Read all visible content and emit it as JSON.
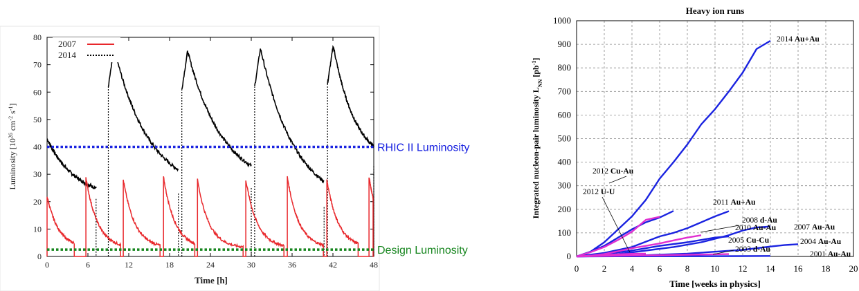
{
  "chart_data": [
    {
      "type": "line",
      "xlabel": "Time [h]",
      "ylabel": "Luminosity [10",
      "ylabel_exp": "26",
      "ylabel_unit": "cm",
      "ylabel_unit_exp1": "-2",
      "ylabel_unit_mid": "s",
      "ylabel_unit_exp2": "-1",
      "ylabel_close": "]",
      "xlim": [
        0,
        48
      ],
      "ylim": [
        0,
        80
      ],
      "xticks": [
        0,
        6,
        12,
        18,
        24,
        30,
        36,
        42,
        48
      ],
      "yticks": [
        0,
        10,
        20,
        30,
        40,
        50,
        60,
        70,
        80
      ],
      "legend": [
        "2007",
        "2014"
      ],
      "legend_position": "top-left",
      "series": [
        {
          "name": "2007",
          "color": "#e8272b",
          "fills": [
            {
              "start": 0.0,
              "end": 4.0,
              "peak": 22
            },
            {
              "start": 5.7,
              "end": 10.8,
              "peak": 29
            },
            {
              "start": 11.2,
              "end": 16.6,
              "peak": 28
            },
            {
              "start": 17.1,
              "end": 21.7,
              "peak": 29
            },
            {
              "start": 22.1,
              "end": 28.8,
              "peak": 28
            },
            {
              "start": 29.2,
              "end": 34.8,
              "peak": 28
            },
            {
              "start": 35.3,
              "end": 40.6,
              "peak": 29
            },
            {
              "start": 41.1,
              "end": 45.7,
              "peak": 28
            },
            {
              "start": 47.3,
              "end": 47.9,
              "peak": 29
            }
          ]
        },
        {
          "name": "2014",
          "color": "#000000",
          "fills": [
            {
              "start": 0.0,
              "end": 7.2,
              "peak": 43,
              "trough": 21
            },
            {
              "start": 9.0,
              "end": 19.3,
              "peak": 76,
              "trough": 23
            },
            {
              "start": 19.8,
              "end": 30.0,
              "peak": 75,
              "trough": 25
            },
            {
              "start": 30.5,
              "end": 40.7,
              "peak": 76,
              "trough": 18
            },
            {
              "start": 41.2,
              "end": 48.0,
              "peak": 77,
              "trough": 33
            }
          ]
        }
      ],
      "reference_lines": [
        {
          "label": "RHIC II Luminosity",
          "value": 40,
          "color": "#1a23e0"
        },
        {
          "label": "Design Luminosity",
          "value": 2.5,
          "color": "#17861f"
        }
      ]
    },
    {
      "type": "line",
      "title": "Heavy ion runs",
      "xlabel": "Time [weeks in physics]",
      "ylabel": "Integrated nucleon-pair luminosity L",
      "ylabel_sub": "NN",
      "ylabel_unit": " [pb",
      "ylabel_unit_exp": "-1",
      "ylabel_close": "]",
      "xlim": [
        0,
        20
      ],
      "ylim": [
        0,
        1000
      ],
      "xticks": [
        0,
        2,
        4,
        6,
        8,
        10,
        12,
        14,
        16,
        18,
        20
      ],
      "yticks": [
        0,
        100,
        200,
        300,
        400,
        500,
        600,
        700,
        800,
        900,
        1000
      ],
      "grid": true,
      "series": [
        {
          "year": "2014",
          "species": "Au+Au",
          "color": "#1a23e0",
          "points": [
            [
              0,
              0
            ],
            [
              1,
              20
            ],
            [
              2,
              60
            ],
            [
              3,
              115
            ],
            [
              4,
              170
            ],
            [
              5,
              240
            ],
            [
              6,
              330
            ],
            [
              7,
              400
            ],
            [
              8,
              475
            ],
            [
              9,
              560
            ],
            [
              10,
              625
            ],
            [
              11,
              700
            ],
            [
              12,
              780
            ],
            [
              13,
              880
            ],
            [
              14,
              915
            ]
          ]
        },
        {
          "year": "2011",
          "species": "Au+Au",
          "color": "#1a23e0",
          "points": [
            [
              0,
              0
            ],
            [
              1,
              20
            ],
            [
              2,
              45
            ],
            [
              3,
              80
            ],
            [
              4,
              115
            ],
            [
              5,
              145
            ],
            [
              6,
              165
            ],
            [
              7,
              193
            ]
          ]
        },
        {
          "year": "2010",
          "species": "Au-Au",
          "color": "#1a23e0",
          "points": [
            [
              0,
              0
            ],
            [
              2,
              15
            ],
            [
              4,
              40
            ],
            [
              6,
              85
            ],
            [
              7,
              100
            ],
            [
              8,
              120
            ],
            [
              9,
              145
            ],
            [
              10,
              170
            ],
            [
              11,
              192
            ]
          ]
        },
        {
          "year": "2007",
          "species": "Au-Au",
          "color": "#1a23e0",
          "points": [
            [
              0,
              0
            ],
            [
              3,
              10
            ],
            [
              5,
              25
            ],
            [
              7,
              40
            ],
            [
              9,
              60
            ],
            [
              10,
              75
            ],
            [
              11,
              90
            ],
            [
              12,
              110
            ],
            [
              13,
              123
            ],
            [
              14,
              127
            ]
          ]
        },
        {
          "year": "2004",
          "species": "Au-Au",
          "color": "#1a23e0",
          "points": [
            [
              0,
              0
            ],
            [
              4,
              3
            ],
            [
              8,
              12
            ],
            [
              12,
              28
            ],
            [
              14,
              42
            ],
            [
              15,
              48
            ],
            [
              16,
              52
            ]
          ]
        },
        {
          "year": "2001",
          "species": "Au-Au",
          "color": "#1a23e0",
          "points": [
            [
              0,
              0
            ],
            [
              4,
              0.5
            ],
            [
              8,
              1
            ],
            [
              12,
              1.5
            ],
            [
              14,
              2
            ]
          ]
        },
        {
          "year": "2005",
          "species": "Cu-Cu",
          "color": "#1a23e0",
          "points": [
            [
              0,
              0
            ],
            [
              2,
              10
            ],
            [
              4,
              25
            ],
            [
              6,
              45
            ],
            [
              8,
              60
            ],
            [
              10,
              80
            ],
            [
              11,
              85
            ]
          ]
        },
        {
          "year": "2012",
          "species": "Cu-Au",
          "color": "#e02fd0",
          "points": [
            [
              0,
              0
            ],
            [
              1,
              18
            ],
            [
              2,
              40
            ],
            [
              3,
              70
            ],
            [
              4,
              105
            ],
            [
              5,
              155
            ],
            [
              6,
              168
            ]
          ]
        },
        {
          "year": "2008",
          "species": "d-Au",
          "color": "#e02fd0",
          "points": [
            [
              0,
              0
            ],
            [
              1,
              3
            ],
            [
              2,
              10
            ],
            [
              3,
              22
            ],
            [
              4,
              35
            ],
            [
              5,
              45
            ],
            [
              6,
              55
            ],
            [
              7,
              68
            ],
            [
              8,
              80
            ],
            [
              9,
              90
            ]
          ]
        },
        {
          "year": "2003",
          "species": "d-Au",
          "color": "#e02fd0",
          "points": [
            [
              0,
              0
            ],
            [
              2,
              2
            ],
            [
              4,
              4
            ],
            [
              6,
              5
            ],
            [
              8,
              7
            ],
            [
              10,
              9
            ],
            [
              11,
              10
            ]
          ]
        },
        {
          "year": "2012",
          "species": "U-U",
          "color": "#e02fd0",
          "points": [
            [
              0,
              0
            ],
            [
              1,
              3
            ],
            [
              2,
              6
            ],
            [
              3,
              9
            ],
            [
              4,
              11
            ],
            [
              5,
              12
            ]
          ]
        }
      ]
    }
  ]
}
